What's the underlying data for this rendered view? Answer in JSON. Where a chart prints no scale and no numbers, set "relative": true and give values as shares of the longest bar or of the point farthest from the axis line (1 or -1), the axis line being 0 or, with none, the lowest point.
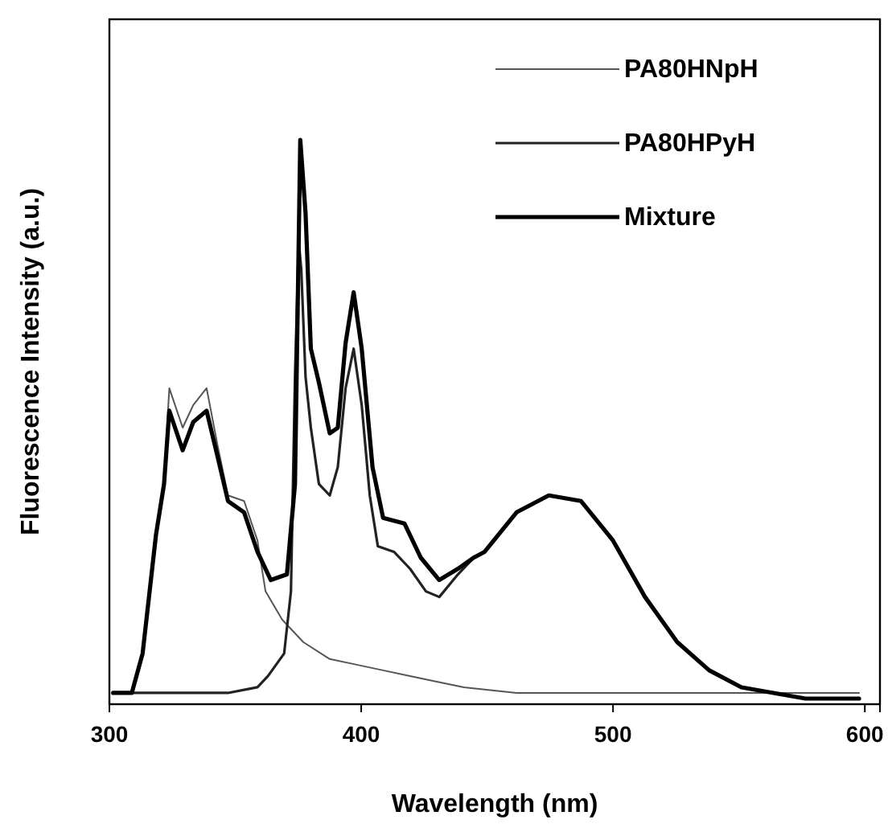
{
  "chart_data": {
    "type": "line",
    "relative": true,
    "xlabel": "Wavelength (nm)",
    "ylabel": "Fluorescence Intensity (a.u.)",
    "xlim": [
      300,
      606
    ],
    "xticks": [
      300,
      400,
      500,
      600
    ],
    "legend": "top right",
    "series": [
      {
        "name": "PA80HNpH",
        "color": "#555555",
        "x": [
          301.5,
          308.9,
          313.2,
          318.5,
          321.7,
          323.8,
          329.1,
          333.3,
          338.6,
          342.9,
          347.1,
          353.5,
          358.8,
          362,
          368.6,
          377,
          387.5,
          398.2,
          408.7,
          419.4,
          430,
          440.8,
          461.7,
          500,
          551,
          597.7
        ],
        "values": [
          0.02,
          0.02,
          0.09,
          0.3,
          0.4,
          0.56,
          0.49,
          0.53,
          0.56,
          0.46,
          0.37,
          0.36,
          0.29,
          0.2,
          0.15,
          0.11,
          0.08,
          0.07,
          0.06,
          0.05,
          0.04,
          0.03,
          0.02,
          0.02,
          0.02,
          0.02
        ]
      },
      {
        "name": "PA80HPyH",
        "color": "#222222",
        "x": [
          301.5,
          330,
          347.1,
          358.8,
          363,
          369.4,
          372.1,
          373.7,
          375.2,
          376.2,
          377.9,
          380,
          383.2,
          387.5,
          390.7,
          393.8,
          397,
          400.2,
          403.4,
          406.6,
          413,
          419.4,
          425.7,
          431,
          438.4,
          444.8,
          449,
          461.7,
          474.5,
          487.3,
          500,
          512.7,
          525.5,
          538.2,
          551,
          563.7,
          576.4,
          597.7
        ],
        "values": [
          0.02,
          0.02,
          0.02,
          0.03,
          0.05,
          0.09,
          0.2,
          0.58,
          0.82,
          0.77,
          0.58,
          0.49,
          0.39,
          0.37,
          0.42,
          0.56,
          0.63,
          0.53,
          0.37,
          0.28,
          0.27,
          0.24,
          0.2,
          0.19,
          0.23,
          0.26,
          0.27,
          0.34,
          0.37,
          0.36,
          0.29,
          0.19,
          0.11,
          0.06,
          0.03,
          0.02,
          0.01,
          0.01
        ]
      },
      {
        "name": "Mixture",
        "color": "#000000",
        "x": [
          301.5,
          308.9,
          313.2,
          318.5,
          321.7,
          323.8,
          329.1,
          333.3,
          338.6,
          342.9,
          347.1,
          353.5,
          358.8,
          364.1,
          370.5,
          373.7,
          375.8,
          377.9,
          380,
          383.2,
          387.5,
          390.7,
          393.8,
          397,
          400.2,
          404.5,
          408.7,
          417.2,
          423.6,
          431,
          438.4,
          444.8,
          449,
          461.7,
          474.5,
          487.3,
          500,
          512.7,
          525.5,
          538.2,
          551,
          563.7,
          576.4,
          597.7
        ],
        "values": [
          0.02,
          0.02,
          0.09,
          0.3,
          0.39,
          0.52,
          0.45,
          0.5,
          0.52,
          0.44,
          0.36,
          0.34,
          0.27,
          0.22,
          0.23,
          0.39,
          1.0,
          0.87,
          0.63,
          0.57,
          0.48,
          0.49,
          0.64,
          0.73,
          0.63,
          0.42,
          0.33,
          0.32,
          0.26,
          0.22,
          0.24,
          0.26,
          0.27,
          0.34,
          0.37,
          0.36,
          0.29,
          0.19,
          0.11,
          0.06,
          0.03,
          0.02,
          0.01,
          0.01
        ]
      }
    ]
  }
}
